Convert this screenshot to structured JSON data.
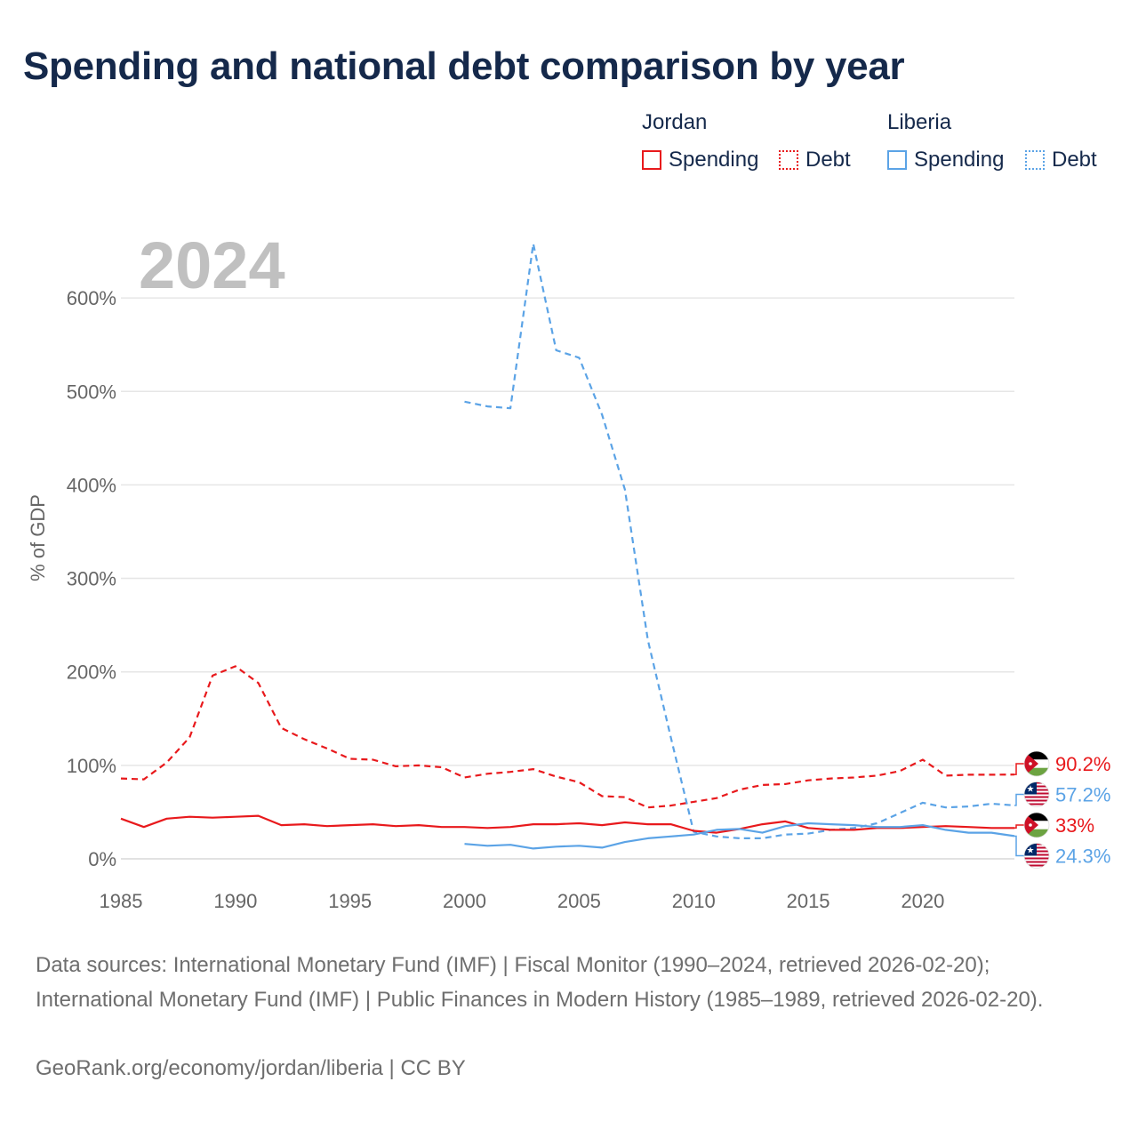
{
  "chart_data": {
    "type": "line",
    "title": "Spending and national debt comparison by year",
    "year_watermark": "2024",
    "ylabel": "% of GDP",
    "xlabel": "",
    "xlim": [
      1985,
      2024
    ],
    "ylim": [
      0,
      660
    ],
    "x_ticks": [
      1985,
      1990,
      1995,
      2000,
      2005,
      2010,
      2015,
      2020
    ],
    "y_ticks": [
      {
        "value": 0,
        "label": "0%"
      },
      {
        "value": 100,
        "label": "100%"
      },
      {
        "value": 200,
        "label": "200%"
      },
      {
        "value": 300,
        "label": "300%"
      },
      {
        "value": 400,
        "label": "400%"
      },
      {
        "value": 500,
        "label": "500%"
      },
      {
        "value": 600,
        "label": "600%"
      }
    ],
    "legend": {
      "groups": [
        {
          "country": "Jordan",
          "color": "#e8191c",
          "items": [
            {
              "label": "Spending",
              "style": "solid"
            },
            {
              "label": "Debt",
              "style": "dotted"
            }
          ]
        },
        {
          "country": "Liberia",
          "color": "#5ba3e6",
          "items": [
            {
              "label": "Spending",
              "style": "solid"
            },
            {
              "label": "Debt",
              "style": "dotted"
            }
          ]
        }
      ]
    },
    "series": [
      {
        "name": "Jordan Debt",
        "country": "Jordan",
        "metric": "Debt",
        "color": "#e8191c",
        "dash": true,
        "x": [
          1985,
          1986,
          1987,
          1988,
          1989,
          1990,
          1991,
          1992,
          1993,
          1994,
          1995,
          1996,
          1997,
          1998,
          1999,
          2000,
          2001,
          2002,
          2003,
          2004,
          2005,
          2006,
          2007,
          2008,
          2009,
          2010,
          2011,
          2012,
          2013,
          2014,
          2015,
          2016,
          2017,
          2018,
          2019,
          2020,
          2021,
          2022,
          2023,
          2024
        ],
        "values": [
          86,
          85,
          103,
          130,
          196,
          206,
          188,
          140,
          128,
          118,
          107,
          106,
          99,
          100,
          98,
          87,
          91,
          93,
          96,
          88,
          82,
          67,
          66,
          55,
          57,
          61,
          65,
          74,
          79,
          80,
          84,
          86,
          87,
          89,
          94,
          106,
          89,
          90,
          90,
          90.2
        ],
        "end_label": "90.2%",
        "flag": "jordan"
      },
      {
        "name": "Liberia Debt",
        "country": "Liberia",
        "metric": "Debt",
        "color": "#5ba3e6",
        "dash": true,
        "x": [
          2000,
          2001,
          2002,
          2003,
          2004,
          2005,
          2006,
          2007,
          2008,
          2009,
          2010,
          2011,
          2012,
          2013,
          2014,
          2015,
          2016,
          2017,
          2018,
          2019,
          2020,
          2021,
          2022,
          2023,
          2024
        ],
        "values": [
          489,
          484,
          482,
          658,
          544,
          536,
          475,
          395,
          234,
          130,
          29,
          24,
          22,
          22,
          26,
          27,
          31,
          33,
          38,
          49,
          60,
          55,
          56,
          59,
          57.2
        ],
        "end_label": "57.2%",
        "flag": "liberia"
      },
      {
        "name": "Jordan Spending",
        "country": "Jordan",
        "metric": "Spending",
        "color": "#e8191c",
        "dash": false,
        "x": [
          1985,
          1986,
          1987,
          1988,
          1989,
          1990,
          1991,
          1992,
          1993,
          1994,
          1995,
          1996,
          1997,
          1998,
          1999,
          2000,
          2001,
          2002,
          2003,
          2004,
          2005,
          2006,
          2007,
          2008,
          2009,
          2010,
          2011,
          2012,
          2013,
          2014,
          2015,
          2016,
          2017,
          2018,
          2019,
          2020,
          2021,
          2022,
          2023,
          2024
        ],
        "values": [
          43,
          34,
          43,
          45,
          44,
          45,
          46,
          36,
          37,
          35,
          36,
          37,
          35,
          36,
          34,
          34,
          33,
          34,
          37,
          37,
          38,
          36,
          39,
          37,
          37,
          30,
          28,
          32,
          37,
          40,
          33,
          31,
          31,
          33,
          33,
          34,
          35,
          34,
          33,
          33
        ],
        "end_label": "33%",
        "flag": "jordan"
      },
      {
        "name": "Liberia Spending",
        "country": "Liberia",
        "metric": "Spending",
        "color": "#5ba3e6",
        "dash": false,
        "x": [
          2000,
          2001,
          2002,
          2003,
          2004,
          2005,
          2006,
          2007,
          2008,
          2009,
          2010,
          2011,
          2012,
          2013,
          2014,
          2015,
          2016,
          2017,
          2018,
          2019,
          2020,
          2021,
          2022,
          2023,
          2024
        ],
        "values": [
          16,
          14,
          15,
          11,
          13,
          14,
          12,
          18,
          22,
          24,
          26,
          31,
          32,
          28,
          35,
          38,
          37,
          36,
          34,
          34,
          36,
          31,
          28,
          28,
          24.3
        ],
        "end_label": "24.3%",
        "flag": "liberia"
      }
    ]
  },
  "footer": {
    "sources": "Data sources: International Monetary Fund (IMF) | Fiscal Monitor (1990–2024, retrieved 2026-02-20); International Monetary Fund (IMF) | Public Finances in Modern History (1985–1989, retrieved 2026-02-20).",
    "credit": "GeoRank.org/economy/jordan/liberia | CC BY"
  }
}
